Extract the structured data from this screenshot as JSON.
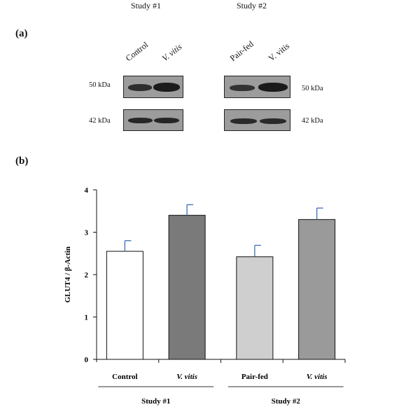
{
  "study_headers": [
    "Study #1",
    "Study #2"
  ],
  "panel_a": {
    "label": "(a)",
    "lanes_study1": [
      "Control",
      "V. vitis"
    ],
    "lanes_study2": [
      "Pair-fed",
      "V. vitis"
    ],
    "kda_upper_left": "50 kDa",
    "kda_lower_left": "42 kDa",
    "kda_upper_right": "50 kDa",
    "kda_lower_right": "42 kDa"
  },
  "panel_b": {
    "label": "(b)"
  },
  "chart_data": {
    "type": "bar",
    "categories": [
      "Control",
      "V. vitis",
      "Pair-fed",
      "V. vitis"
    ],
    "values": [
      2.55,
      3.4,
      2.42,
      3.3
    ],
    "errors": [
      0.25,
      0.25,
      0.27,
      0.27
    ],
    "bar_colors": [
      "#ffffff",
      "#7a7a7a",
      "#cfcfcf",
      "#9a9a9a"
    ],
    "error_color": "#3d6fb0",
    "ylabel": "GLUT4 / β-Actin",
    "yticks": [
      0,
      1,
      2,
      3,
      4
    ],
    "ylim": [
      0,
      4
    ],
    "groups": [
      {
        "label": "Study #1",
        "categories": [
          0,
          1
        ]
      },
      {
        "label": "Study #2",
        "categories": [
          2,
          3
        ]
      }
    ],
    "grid": false
  }
}
